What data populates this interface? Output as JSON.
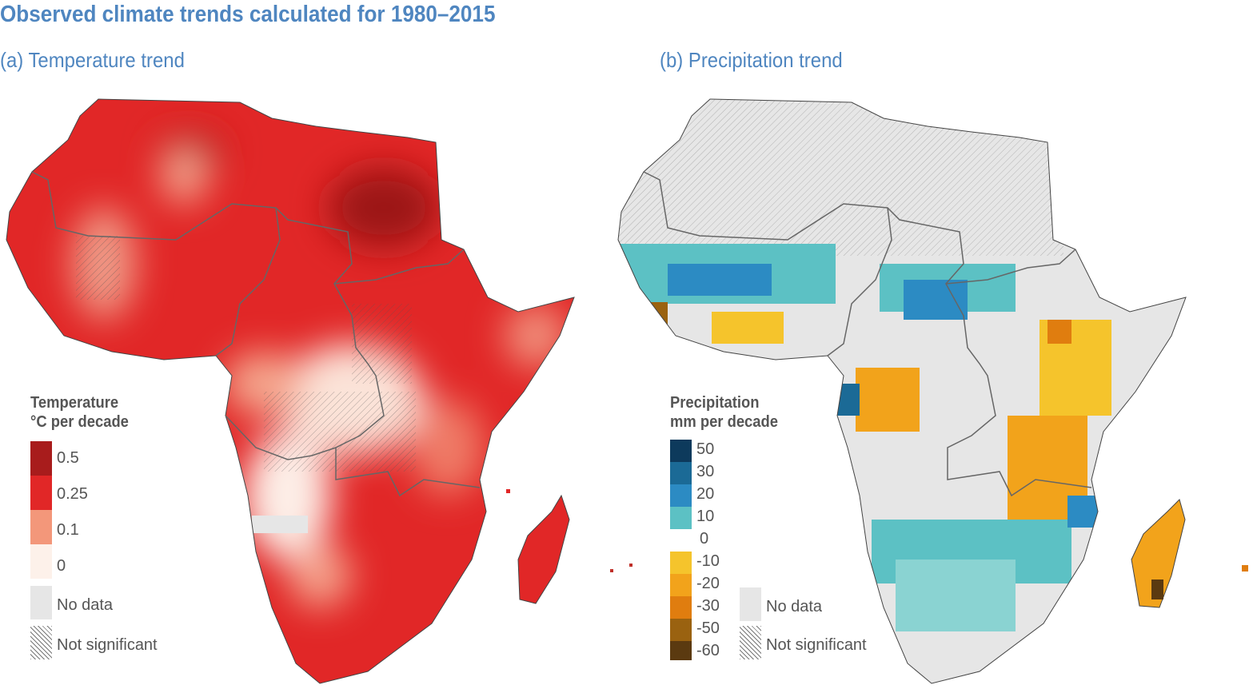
{
  "title": "Observed climate trends calculated for 1980–2015",
  "panel_a": {
    "title": "(a) Temperature trend",
    "legend": {
      "title_line1": "Temperature",
      "title_line2": "°C per decade",
      "items": [
        {
          "label": "0.5",
          "color": "#a81c1c"
        },
        {
          "label": "0.25",
          "color": "#e12727"
        },
        {
          "label": "0.1",
          "color": "#f3977a"
        },
        {
          "label": "0",
          "color": "#fdf1ea"
        }
      ],
      "no_data_label": "No data",
      "not_significant_label": "Not significant"
    }
  },
  "panel_b": {
    "title": "(b) Precipitation trend",
    "legend": {
      "title_line1": "Precipitation",
      "title_line2": "mm per decade",
      "labels": [
        "50",
        "30",
        "20",
        "10",
        "0",
        "-10",
        "-20",
        "-30",
        "-50",
        "-60"
      ],
      "colors": [
        "#0d3a5c",
        "#1b6a96",
        "#2c8bc3",
        "#5cc1c4",
        "#f5c42c",
        "#f2a31b",
        "#e07d0f",
        "#9a6210",
        "#5b3a10"
      ],
      "no_data_label": "No data",
      "not_significant_label": "Not significant"
    }
  },
  "colors": {
    "title": "#4f86c0",
    "no_data": "#e6e6e6",
    "temp_base": "#e12727",
    "temp_dark": "#a81c1c"
  }
}
